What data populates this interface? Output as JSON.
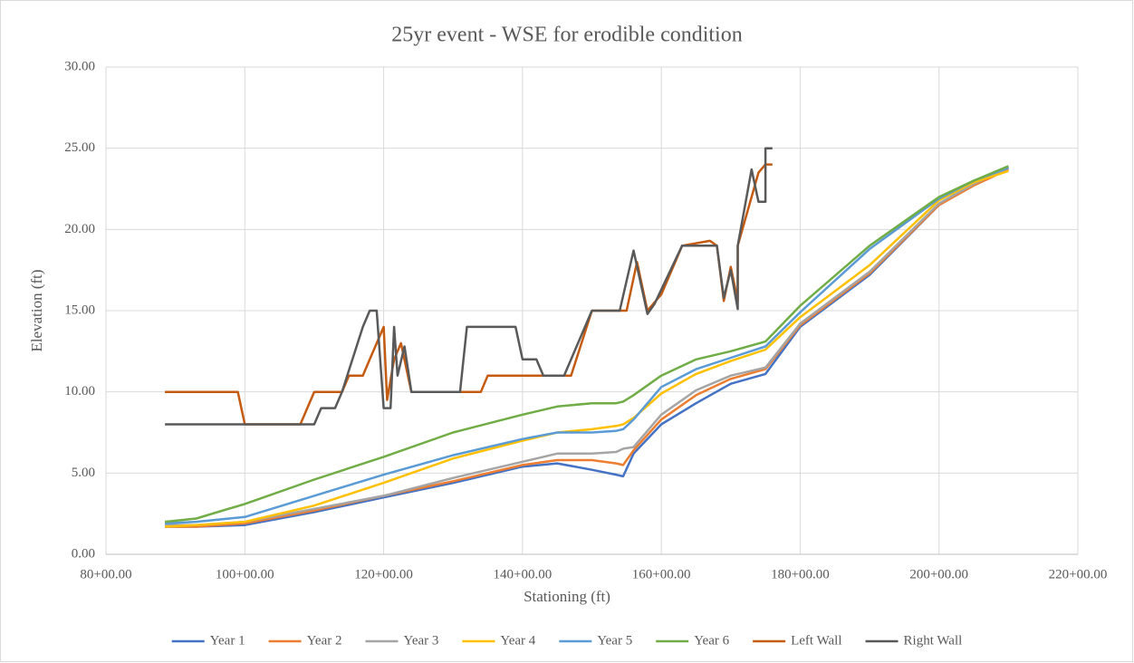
{
  "chart_data": {
    "type": "line",
    "title": "25yr event - WSE for erodible condition",
    "x_label": "Stationing (ft)",
    "y_label": "Elevation (ft)",
    "xlim": [
      8000,
      22000
    ],
    "xticks": [
      {
        "value": 8000,
        "label": "80+00.00"
      },
      {
        "value": 10000,
        "label": "100+00.00"
      },
      {
        "value": 12000,
        "label": "120+00.00"
      },
      {
        "value": 14000,
        "label": "140+00.00"
      },
      {
        "value": 16000,
        "label": "160+00.00"
      },
      {
        "value": 18000,
        "label": "180+00.00"
      },
      {
        "value": 20000,
        "label": "200+00.00"
      },
      {
        "value": 22000,
        "label": "220+00.00"
      }
    ],
    "ylim": [
      0,
      30
    ],
    "yticks": [
      {
        "value": 0,
        "label": "0.00"
      },
      {
        "value": 5,
        "label": "5.00"
      },
      {
        "value": 10,
        "label": "10.00"
      },
      {
        "value": 15,
        "label": "15.00"
      },
      {
        "value": 20,
        "label": "20.00"
      },
      {
        "value": 25,
        "label": "25.00"
      },
      {
        "value": 30,
        "label": "30.00"
      }
    ],
    "grid": true,
    "legend": "bottom",
    "series": [
      {
        "name": "Year 1",
        "color": "#4472c4",
        "x": [
          8850,
          9300,
          10000,
          11000,
          12000,
          13000,
          14000,
          14500,
          15000,
          15350,
          15450,
          15600,
          16000,
          16500,
          17000,
          17500,
          18000,
          19000,
          20000,
          20500,
          21000
        ],
        "values": [
          1.7,
          1.7,
          1.8,
          2.6,
          3.5,
          4.4,
          5.4,
          5.6,
          5.2,
          4.9,
          4.8,
          6.2,
          8.0,
          9.3,
          10.5,
          11.1,
          14.0,
          17.2,
          21.5,
          22.8,
          23.8
        ]
      },
      {
        "name": "Year 2",
        "color": "#ed7d31",
        "x": [
          8850,
          9300,
          10000,
          11000,
          12000,
          13000,
          14000,
          14500,
          15000,
          15350,
          15450,
          15600,
          16000,
          16500,
          17000,
          17500,
          18000,
          19000,
          20000,
          20500,
          21000
        ],
        "values": [
          1.7,
          1.7,
          1.9,
          2.7,
          3.6,
          4.5,
          5.5,
          5.8,
          5.8,
          5.6,
          5.5,
          6.4,
          8.3,
          9.8,
          10.8,
          11.4,
          14.1,
          17.3,
          21.5,
          22.7,
          23.7
        ]
      },
      {
        "name": "Year 3",
        "color": "#a5a5a5",
        "x": [
          8850,
          9300,
          10000,
          11000,
          12000,
          13000,
          14000,
          14500,
          15000,
          15350,
          15450,
          15600,
          16000,
          16500,
          17000,
          17500,
          18000,
          19000,
          20000,
          20500,
          21000
        ],
        "values": [
          1.8,
          1.8,
          2.0,
          2.8,
          3.6,
          4.7,
          5.7,
          6.2,
          6.2,
          6.3,
          6.5,
          6.6,
          8.6,
          10.1,
          11.0,
          11.5,
          14.2,
          17.4,
          21.6,
          22.8,
          23.8
        ]
      },
      {
        "name": "Year 4",
        "color": "#ffc000",
        "x": [
          8850,
          9300,
          10000,
          11000,
          12000,
          13000,
          14000,
          14500,
          15000,
          15350,
          15450,
          15600,
          16000,
          16500,
          17000,
          17500,
          18000,
          19000,
          20000,
          20500,
          21000
        ],
        "values": [
          1.7,
          1.8,
          2.0,
          3.0,
          4.4,
          5.9,
          7.0,
          7.5,
          7.7,
          7.9,
          8.0,
          8.4,
          9.9,
          11.1,
          11.9,
          12.6,
          14.6,
          17.8,
          21.8,
          22.9,
          23.6
        ]
      },
      {
        "name": "Year 5",
        "color": "#5b9bd5",
        "x": [
          8850,
          9300,
          10000,
          11000,
          12000,
          13000,
          14000,
          14500,
          15000,
          15350,
          15450,
          15600,
          16000,
          16500,
          17000,
          17500,
          18000,
          19000,
          20000,
          20500,
          21000
        ],
        "values": [
          1.9,
          2.0,
          2.3,
          3.6,
          4.9,
          6.1,
          7.1,
          7.5,
          7.5,
          7.6,
          7.7,
          8.3,
          10.3,
          11.4,
          12.1,
          12.8,
          14.9,
          18.8,
          21.9,
          23.0,
          23.8
        ]
      },
      {
        "name": "Year 6",
        "color": "#70ad47",
        "x": [
          8850,
          9300,
          10000,
          11000,
          12000,
          13000,
          14000,
          14500,
          15000,
          15350,
          15450,
          15600,
          16000,
          16500,
          17000,
          17500,
          18000,
          19000,
          20000,
          20500,
          21000
        ],
        "values": [
          2.0,
          2.2,
          3.1,
          4.6,
          6.0,
          7.5,
          8.6,
          9.1,
          9.3,
          9.3,
          9.4,
          9.8,
          11.0,
          12.0,
          12.5,
          13.1,
          15.3,
          19.0,
          22.0,
          23.0,
          23.9
        ]
      },
      {
        "name": "Left Wall",
        "color": "#c55a11",
        "x": [
          8850,
          9900,
          10000,
          10800,
          11000,
          11400,
          11500,
          11700,
          11800,
          11900,
          12000,
          12050,
          12150,
          12250,
          12400,
          13400,
          13500,
          14700,
          15000,
          15500,
          15650,
          15800,
          16000,
          16200,
          16300,
          16700,
          16800,
          16900,
          17000,
          17100,
          17100,
          17400,
          17500,
          17600
        ],
        "values": [
          10,
          10,
          8,
          8,
          10,
          10,
          11,
          11,
          12,
          13,
          14,
          9.5,
          12,
          13,
          10,
          10,
          11,
          11,
          15,
          15,
          18,
          15,
          16,
          18,
          19,
          19.3,
          19,
          15.6,
          17.7,
          15.6,
          19,
          23.5,
          24,
          24
        ]
      },
      {
        "name": "Right Wall",
        "color": "#595959",
        "x": [
          8850,
          11000,
          11100,
          11300,
          11400,
          11700,
          11800,
          11900,
          12000,
          12100,
          12150,
          12200,
          12300,
          12400,
          13100,
          13200,
          13900,
          14000,
          14200,
          14300,
          14600,
          15000,
          15400,
          15600,
          15800,
          15900,
          16300,
          16800,
          16900,
          17000,
          17100,
          17100,
          17300,
          17400,
          17500,
          17500,
          17600
        ],
        "values": [
          8,
          8,
          9,
          9,
          10,
          14,
          15,
          15,
          9,
          9,
          14,
          11,
          12.8,
          10,
          10,
          14,
          14,
          12,
          12,
          11,
          11,
          15,
          15,
          18.7,
          14.8,
          15.4,
          19,
          19,
          15.8,
          17.5,
          15.1,
          19,
          23.7,
          21.7,
          21.7,
          25,
          25
        ]
      }
    ]
  }
}
